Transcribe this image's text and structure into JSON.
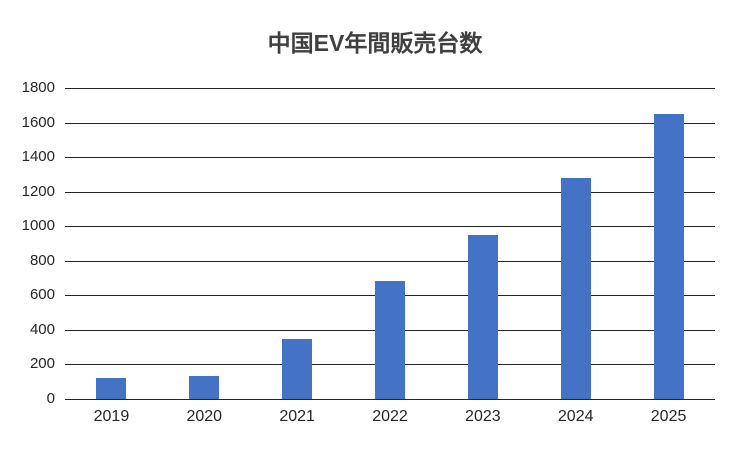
{
  "chart_data": {
    "type": "bar",
    "title": "中国EV年間販売台数",
    "categories": [
      "2019",
      "2020",
      "2021",
      "2022",
      "2023",
      "2024",
      "2025"
    ],
    "values": [
      120,
      135,
      350,
      685,
      950,
      1280,
      1650
    ],
    "yticks": [
      0,
      200,
      400,
      600,
      800,
      1000,
      1200,
      1400,
      1600,
      1800
    ],
    "ylim": [
      0,
      1800
    ],
    "xlabel": "",
    "ylabel": "",
    "grid": "horizontal",
    "legend": "none",
    "bar_color": "#4472C4",
    "gridline_color": "#262626",
    "axis_text_color": "#262626",
    "title_color": "#3f3f3f",
    "background": "#FFFFFF"
  }
}
